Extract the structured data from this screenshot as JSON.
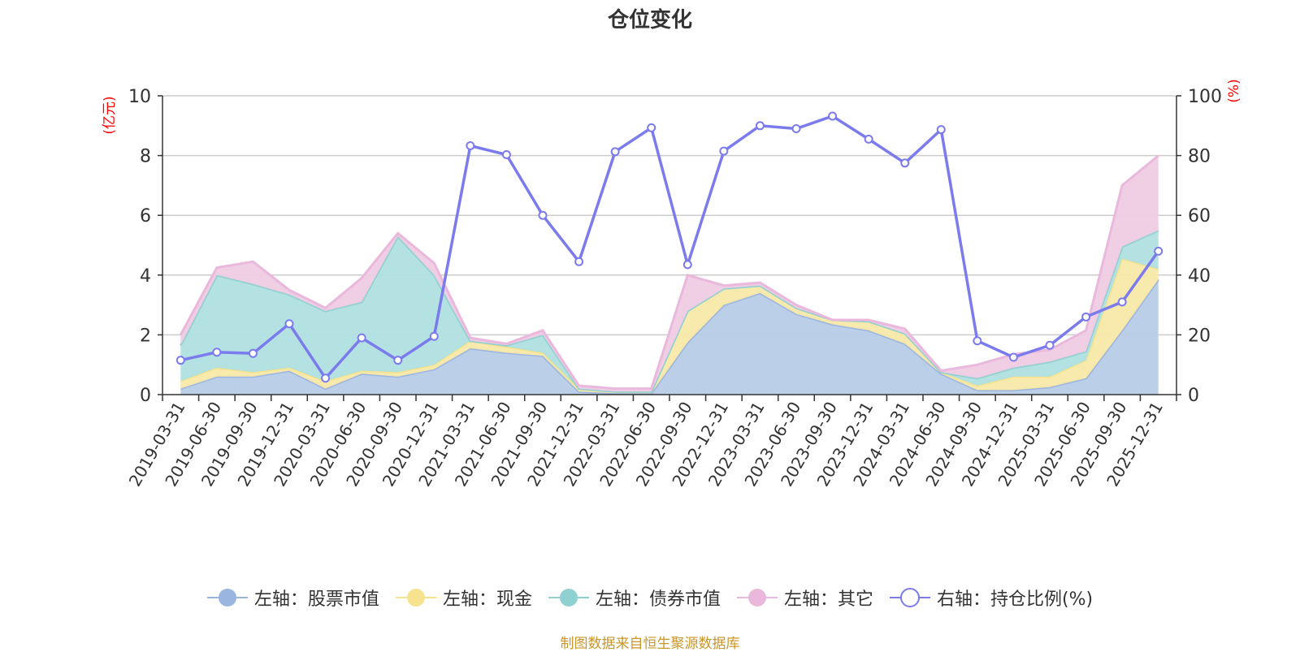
{
  "chart_data": {
    "type": "area",
    "title": "仓位变化",
    "categories": [
      "2019-03-31",
      "2019-06-30",
      "2019-09-30",
      "2019-12-31",
      "2020-03-31",
      "2020-06-30",
      "2020-09-30",
      "2020-12-31",
      "2021-03-31",
      "2021-06-30",
      "2021-09-30",
      "2021-12-31",
      "2022-03-31",
      "2022-06-30",
      "2022-09-30",
      "2022-12-31",
      "2023-03-31",
      "2023-06-30",
      "2023-09-30",
      "2023-12-31",
      "2024-03-31",
      "2024-06-30",
      "2024-09-30",
      "2024-12-31",
      "2025-03-31",
      "2025-06-30",
      "2025-09-30",
      "2025-12-31"
    ],
    "left_axis": {
      "unit": "(亿元)",
      "ylim": [
        0,
        10
      ],
      "ticks": [
        0,
        2,
        4,
        6,
        8,
        10
      ]
    },
    "right_axis": {
      "unit": "(%)",
      "ylim": [
        0,
        100
      ],
      "ticks": [
        0,
        20,
        40,
        60,
        80,
        100
      ]
    },
    "stacked_series": [
      {
        "name": "左轴：股票市值",
        "color": "#9ab6e0",
        "fill": "#b8cce8",
        "values": [
          0.2,
          0.6,
          0.6,
          0.8,
          0.2,
          0.7,
          0.6,
          0.85,
          1.55,
          1.4,
          1.3,
          0.1,
          0.05,
          0.05,
          1.75,
          3.0,
          3.4,
          2.7,
          2.35,
          2.15,
          1.7,
          0.7,
          0.15,
          0.15,
          0.25,
          0.55,
          2.15,
          3.85
        ]
      },
      {
        "name": "左轴：现金",
        "color": "#f7e38f",
        "fill": "#f8e8a8",
        "values": [
          0.25,
          0.3,
          0.15,
          0.1,
          0.25,
          0.1,
          0.15,
          0.15,
          0.25,
          0.2,
          0.1,
          0.1,
          0.05,
          0.05,
          1.05,
          0.55,
          0.25,
          0.2,
          0.15,
          0.3,
          0.35,
          0.05,
          0.15,
          0.45,
          0.35,
          0.6,
          2.4,
          0.35
        ]
      },
      {
        "name": "左轴：债券市值",
        "color": "#8fd0d0",
        "fill": "#b0dfdf",
        "values": [
          1.2,
          3.1,
          2.95,
          2.45,
          2.35,
          2.3,
          4.55,
          3.0,
          0.0,
          0.05,
          0.6,
          0.0,
          0.0,
          0.0,
          0.0,
          0.0,
          0.0,
          0.0,
          0.0,
          0.0,
          0.0,
          0.0,
          0.25,
          0.3,
          0.5,
          0.3,
          0.4,
          1.3
        ]
      },
      {
        "name": "左轴：其它",
        "color": "#eab8dc",
        "fill": "#efcce4",
        "values": [
          0.35,
          0.25,
          0.75,
          0.15,
          0.1,
          0.8,
          0.1,
          0.4,
          0.1,
          0.05,
          0.15,
          0.1,
          0.1,
          0.1,
          1.2,
          0.1,
          0.1,
          0.1,
          0.0,
          0.05,
          0.15,
          0.05,
          0.45,
          0.45,
          0.4,
          0.7,
          2.05,
          2.5
        ]
      }
    ],
    "line_series": {
      "name": "右轴：持仓比例(%)",
      "color": "#7b7bee",
      "values": [
        11.5,
        14.2,
        13.8,
        23.7,
        5.5,
        19.0,
        11.5,
        19.5,
        83.3,
        80.3,
        60.0,
        44.5,
        81.3,
        89.3,
        43.5,
        81.5,
        90.0,
        89.0,
        93.2,
        85.5,
        77.5,
        88.7,
        18.0,
        12.5,
        16.5,
        26.0,
        31.0,
        48.0
      ]
    }
  },
  "legend": [
    "左轴：股票市值",
    "左轴：现金",
    "左轴：债券市值",
    "左轴：其它",
    "右轴：持仓比例(%)"
  ],
  "source": "制图数据来自恒生聚源数据库"
}
